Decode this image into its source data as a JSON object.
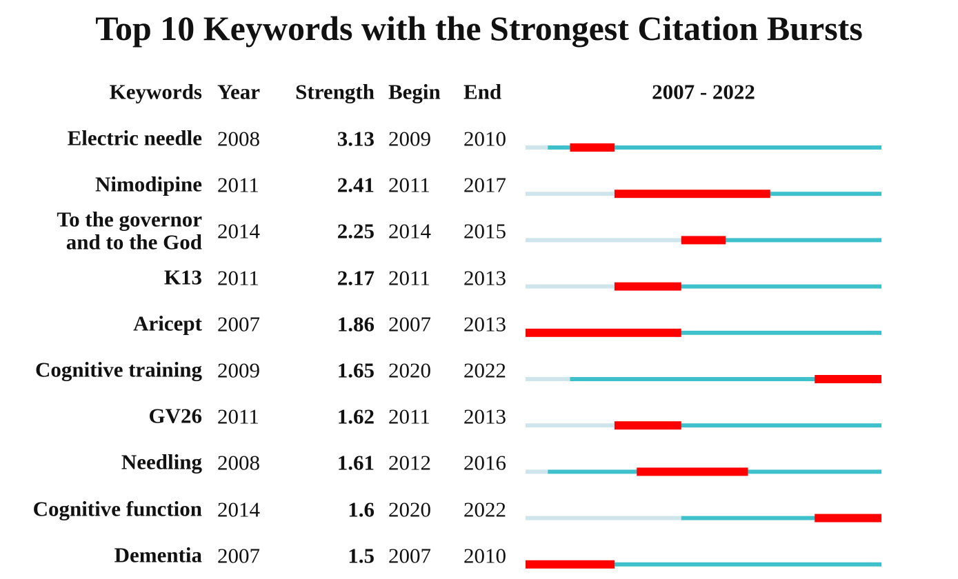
{
  "title": "Top 10 Keywords with the Strongest Citation Bursts",
  "columns": [
    "Keywords",
    "Year",
    "Strength",
    "Begin",
    "End"
  ],
  "timeline": {
    "label": "2007 - 2022",
    "start": 2007,
    "end": 2022
  },
  "rows": [
    {
      "keyword": "Electric needle",
      "year": 2008,
      "strength": 3.13,
      "begin": 2009,
      "end": 2010
    },
    {
      "keyword": "Nimodipine",
      "year": 2011,
      "strength": 2.41,
      "begin": 2011,
      "end": 2017
    },
    {
      "keyword": "To the governor\nand to the God",
      "year": 2014,
      "strength": 2.25,
      "begin": 2014,
      "end": 2015
    },
    {
      "keyword": "K13",
      "year": 2011,
      "strength": 2.17,
      "begin": 2011,
      "end": 2013
    },
    {
      "keyword": "Aricept",
      "year": 2007,
      "strength": 1.86,
      "begin": 2007,
      "end": 2013
    },
    {
      "keyword": "Cognitive training",
      "year": 2009,
      "strength": 1.65,
      "begin": 2020,
      "end": 2022
    },
    {
      "keyword": "GV26",
      "year": 2011,
      "strength": 1.62,
      "begin": 2011,
      "end": 2013
    },
    {
      "keyword": "Needling",
      "year": 2008,
      "strength": 1.61,
      "begin": 2012,
      "end": 2016
    },
    {
      "keyword": "Cognitive function",
      "year": 2014,
      "strength": 1.6,
      "begin": 2020,
      "end": 2022
    },
    {
      "keyword": "Dementia",
      "year": 2007,
      "strength": 1.5,
      "begin": 2007,
      "end": 2010
    }
  ]
}
